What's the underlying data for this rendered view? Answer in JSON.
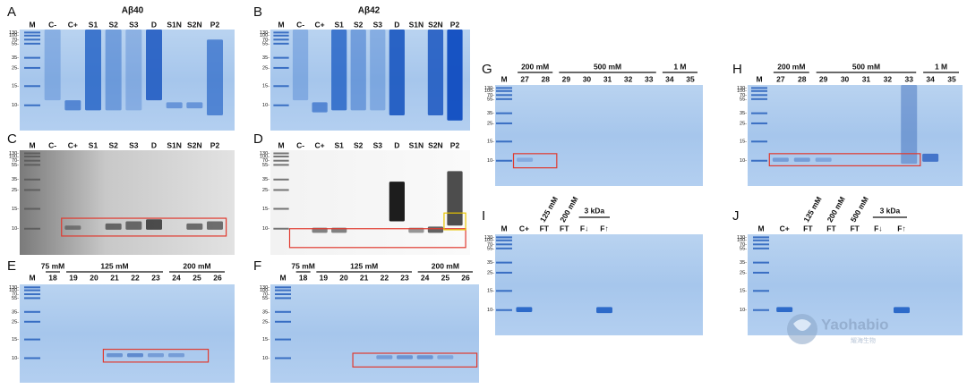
{
  "figure": {
    "mw_markers": [
      "130-",
      "100-",
      "70-",
      "55-",
      "35-",
      "25-",
      "15-",
      "10-"
    ],
    "panels": [
      {
        "letter": "A",
        "title": "Aβ40",
        "lanes": [
          "M",
          "C-",
          "C+",
          "S1",
          "S2",
          "S3",
          "D",
          "S1N",
          "S2N",
          "P2"
        ]
      },
      {
        "letter": "B",
        "title": "Aβ42",
        "lanes": [
          "M",
          "C-",
          "C+",
          "S1",
          "S2",
          "S3",
          "D",
          "S1N",
          "S2N",
          "P2"
        ]
      },
      {
        "letter": "C",
        "lanes": [
          "M",
          "C-",
          "C+",
          "S1",
          "S2",
          "S3",
          "D",
          "S1N",
          "S2N",
          "P2"
        ]
      },
      {
        "letter": "D",
        "lanes": [
          "M",
          "C-",
          "C+",
          "S1",
          "S2",
          "S3",
          "D",
          "S1N",
          "S2N",
          "P2"
        ]
      },
      {
        "letter": "E",
        "groups": [
          "75 mM",
          "125 mM",
          "200 mM"
        ],
        "lanes": [
          "M",
          "18",
          "19",
          "20",
          "21",
          "22",
          "23",
          "24",
          "25",
          "26"
        ]
      },
      {
        "letter": "F",
        "groups": [
          "75 mM",
          "125 mM",
          "200 mM"
        ],
        "lanes": [
          "M",
          "18",
          "19",
          "20",
          "21",
          "22",
          "23",
          "24",
          "25",
          "26"
        ]
      },
      {
        "letter": "G",
        "groups": [
          "200 mM",
          "500 mM",
          "1 M"
        ],
        "lanes": [
          "M",
          "27",
          "28",
          "29",
          "30",
          "31",
          "32",
          "33",
          "34",
          "35"
        ]
      },
      {
        "letter": "H",
        "groups": [
          "200 mM",
          "500 mM",
          "1 M"
        ],
        "lanes": [
          "M",
          "27",
          "28",
          "29",
          "30",
          "31",
          "32",
          "33",
          "34",
          "35"
        ]
      },
      {
        "letter": "I",
        "conditions": [
          "125 mM",
          "200 mM",
          "3 kDa"
        ],
        "lanes": [
          "M",
          "C+",
          "FT",
          "FT",
          "F↓",
          "F↑"
        ]
      },
      {
        "letter": "J",
        "conditions": [
          "125 mM",
          "200 mM",
          "500 mM",
          "3 kDa"
        ],
        "lanes": [
          "M",
          "C+",
          "FT",
          "FT",
          "FT",
          "F↓",
          "F↑"
        ]
      }
    ],
    "watermark": {
      "name": "Yaohabio",
      "subtitle": "耀海生物"
    }
  }
}
